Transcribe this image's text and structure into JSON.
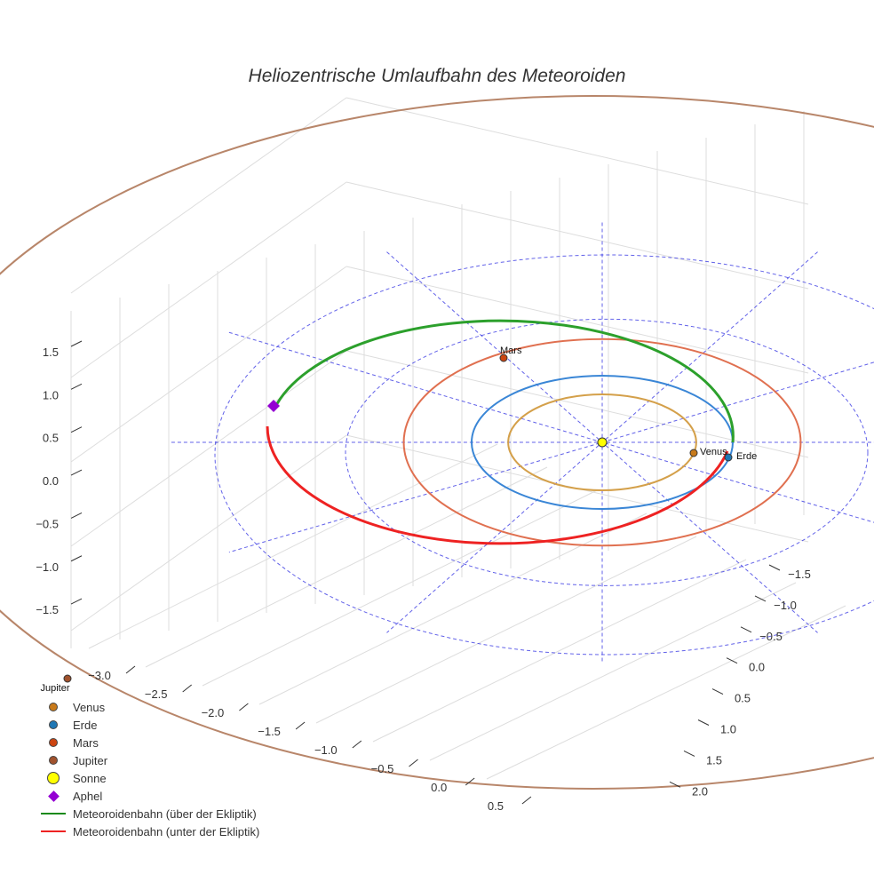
{
  "chart_data": {
    "type": "scatter3d",
    "title": "Heliozentrische Umlaufbahn des Meteoroiden",
    "x_ticks": [
      -3.0,
      -2.5,
      -2.0,
      -1.5,
      -1.0,
      -0.5,
      0.0,
      0.5
    ],
    "y_ticks": [
      -1.5,
      -1.0,
      -0.5,
      0.0,
      0.5,
      1.0,
      1.5,
      2.0
    ],
    "z_ticks": [
      1.5,
      1.0,
      0.5,
      0.0,
      -0.5,
      -1.0,
      -1.5
    ],
    "x_tick_labels": [
      "−3.0",
      "−2.5",
      "−2.0",
      "−1.5",
      "−1.0",
      "−0.5",
      "0.0",
      "0.5"
    ],
    "y_tick_labels": [
      "−1.5",
      "−1.0",
      "−0.5",
      "0.0",
      "0.5",
      "1.0",
      "1.5",
      "2.0"
    ],
    "z_tick_labels": [
      "1.5",
      "1.0",
      "0.5",
      "0.0",
      "−0.5",
      "−1.0",
      "−1.5"
    ],
    "orbits_au": {
      "Venus": 0.72,
      "Erde": 1.0,
      "Mars": 1.52,
      "Jupiter": 5.2
    },
    "ecliptic_rings_au": [
      2,
      3
    ],
    "point_labels": {
      "venus": "Venus",
      "erde": "Erde",
      "mars": "Mars",
      "jupiter": "Jupiter"
    },
    "colors": {
      "venus": "#d4a04a",
      "erde": "#3a86d6",
      "mars": "#e07050",
      "jupiter": "#b8866a",
      "sonne": "#ffff00",
      "aphel": "#9400d3",
      "above": "#2ca02c",
      "below": "#ee2222",
      "grid": "#1f1fe0"
    },
    "legend": [
      {
        "label": "Venus",
        "type": "dot",
        "color": "#c87a1a"
      },
      {
        "label": "Erde",
        "type": "dot",
        "color": "#1f77b4"
      },
      {
        "label": "Mars",
        "type": "dot",
        "color": "#cc4411"
      },
      {
        "label": "Jupiter",
        "type": "dot",
        "color": "#a0522d"
      },
      {
        "label": "Sonne",
        "type": "big",
        "color": "#ffff00"
      },
      {
        "label": "Aphel",
        "type": "diamond",
        "color": "#9400d3"
      },
      {
        "label": "Meteoroidenbahn (über der Ekliptik)",
        "type": "line",
        "color": "#1a8a1a"
      },
      {
        "label": "Meteoroidenbahn (unter der Ekliptik)",
        "type": "line",
        "color": "#ee2222"
      }
    ]
  }
}
